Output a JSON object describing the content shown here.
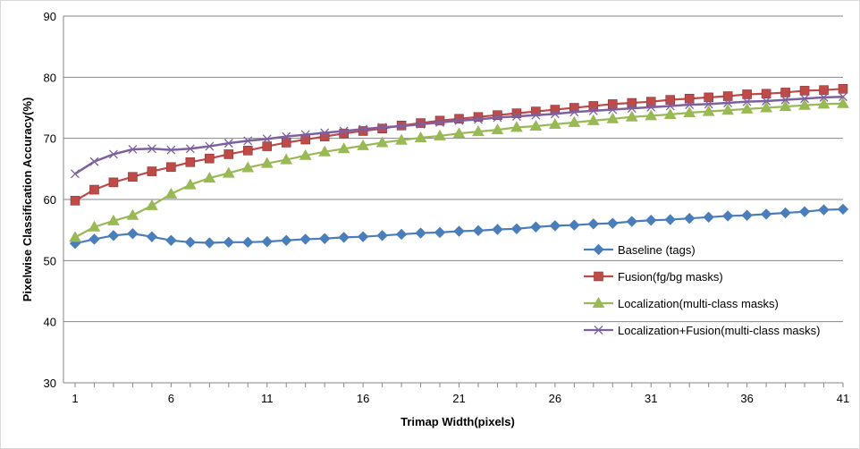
{
  "chart_data": {
    "type": "line",
    "title": "",
    "xlabel": "Trimap Width(pixels)",
    "ylabel": "Pixelwise Classification Accuracy(%)",
    "xlim": [
      1,
      41
    ],
    "ylim": [
      30,
      90
    ],
    "x_ticks": [
      1,
      6,
      11,
      16,
      21,
      26,
      31,
      36,
      41
    ],
    "y_ticks": [
      30,
      40,
      50,
      60,
      70,
      80,
      90
    ],
    "grid": "horizontal",
    "legend_position": "right",
    "x": [
      1,
      2,
      3,
      4,
      5,
      6,
      7,
      8,
      9,
      10,
      11,
      12,
      13,
      14,
      15,
      16,
      17,
      18,
      19,
      20,
      21,
      22,
      23,
      24,
      25,
      26,
      27,
      28,
      29,
      30,
      31,
      32,
      33,
      34,
      35,
      36,
      37,
      38,
      39,
      40,
      41
    ],
    "series": [
      {
        "name": "Baseline (tags)",
        "color": "#4a7ebb",
        "marker": "diamond",
        "values": [
          52.8,
          53.5,
          54.1,
          54.4,
          53.9,
          53.3,
          53.0,
          52.9,
          53.0,
          53.0,
          53.1,
          53.3,
          53.5,
          53.6,
          53.8,
          53.9,
          54.1,
          54.3,
          54.5,
          54.6,
          54.8,
          54.9,
          55.1,
          55.2,
          55.5,
          55.7,
          55.8,
          56.0,
          56.1,
          56.4,
          56.6,
          56.7,
          56.9,
          57.1,
          57.3,
          57.4,
          57.6,
          57.8,
          58.0,
          58.3,
          58.4
        ]
      },
      {
        "name": "Fusion(fg/bg masks)",
        "color": "#be4b48",
        "marker": "square",
        "values": [
          59.8,
          61.6,
          62.8,
          63.7,
          64.6,
          65.3,
          66.1,
          66.7,
          67.4,
          68.0,
          68.7,
          69.3,
          69.8,
          70.3,
          70.8,
          71.2,
          71.6,
          72.1,
          72.5,
          72.9,
          73.2,
          73.5,
          73.8,
          74.1,
          74.4,
          74.7,
          75.0,
          75.3,
          75.6,
          75.8,
          76.0,
          76.3,
          76.5,
          76.7,
          76.9,
          77.2,
          77.3,
          77.5,
          77.8,
          77.9,
          78.1
        ]
      },
      {
        "name": "Localization(multi-class masks)",
        "color": "#98b954",
        "marker": "triangle",
        "values": [
          53.8,
          55.5,
          56.5,
          57.4,
          59.0,
          60.9,
          62.4,
          63.5,
          64.3,
          65.2,
          65.9,
          66.5,
          67.2,
          67.8,
          68.3,
          68.8,
          69.3,
          69.7,
          70.1,
          70.4,
          70.8,
          71.1,
          71.4,
          71.8,
          72.0,
          72.3,
          72.6,
          72.9,
          73.2,
          73.5,
          73.7,
          73.9,
          74.2,
          74.4,
          74.6,
          74.8,
          75.0,
          75.2,
          75.4,
          75.6,
          75.7
        ]
      },
      {
        "name": "Localization+Fusion(multi-class masks)",
        "color": "#7d60a0",
        "marker": "x",
        "values": [
          64.2,
          66.2,
          67.4,
          68.2,
          68.3,
          68.1,
          68.3,
          68.7,
          69.2,
          69.6,
          69.9,
          70.3,
          70.6,
          70.9,
          71.2,
          71.5,
          71.8,
          72.0,
          72.3,
          72.6,
          72.9,
          73.1,
          73.4,
          73.6,
          73.8,
          74.0,
          74.3,
          74.5,
          74.7,
          74.9,
          75.1,
          75.3,
          75.5,
          75.6,
          75.8,
          76.0,
          76.1,
          76.3,
          76.5,
          76.7,
          76.8
        ]
      }
    ]
  }
}
